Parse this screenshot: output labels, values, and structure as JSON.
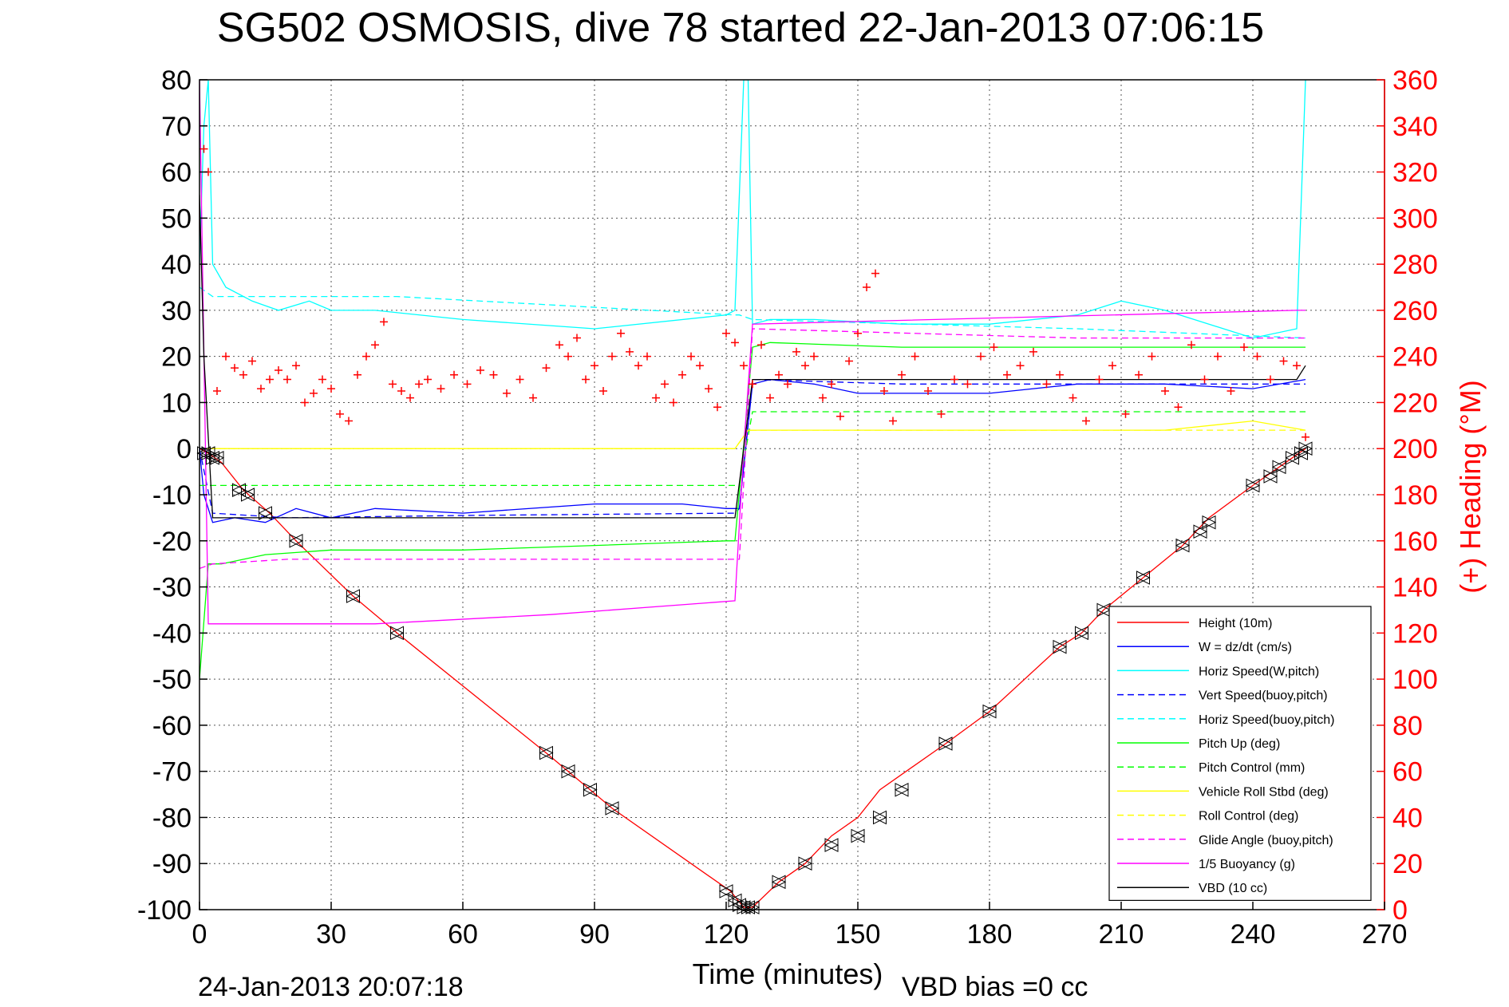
{
  "chart_data": {
    "type": "line",
    "title": "SG502 OSMOSIS, dive 78 started 22-Jan-2013 07:06:15",
    "xlabel": "Time (minutes)",
    "ylabel": "",
    "y2label": "(+) Heading (°M)",
    "xlim": [
      0,
      270
    ],
    "ylim": [
      -100,
      80
    ],
    "y2lim": [
      0,
      360
    ],
    "xticks": [
      "0",
      "30",
      "60",
      "90",
      "120",
      "150",
      "180",
      "210",
      "240",
      "270"
    ],
    "yticks": [
      "80",
      "70",
      "60",
      "50",
      "40",
      "30",
      "20",
      "10",
      "0",
      "-10",
      "-20",
      "-30",
      "-40",
      "-50",
      "-60",
      "-70",
      "-80",
      "-90",
      "-100"
    ],
    "y2ticks": [
      "360",
      "340",
      "320",
      "300",
      "280",
      "260",
      "240",
      "220",
      "200",
      "180",
      "160",
      "140",
      "120",
      "100",
      "80",
      "60",
      "40",
      "20",
      "0"
    ],
    "grid": true,
    "legend_position": "bottom-right",
    "footer_date": "24-Jan-2013 20:07:18",
    "footer_note": "VBD bias =0 cc",
    "series": [
      {
        "name": "Height (10m)",
        "color": "#ff0000",
        "style": "solid",
        "x": [
          0,
          2,
          5,
          10,
          16,
          22,
          35,
          45,
          79,
          84,
          89,
          94,
          121,
          124,
          126,
          132,
          138,
          144,
          150,
          155,
          170,
          180,
          196,
          201,
          206,
          215,
          224,
          230,
          240,
          246,
          252
        ],
        "y": [
          0,
          -1,
          -3,
          -9,
          -14,
          -20,
          -32,
          -40,
          -66,
          -70,
          -74,
          -78,
          -96,
          -99.5,
          -99.5,
          -94,
          -90,
          -84,
          -80,
          -74,
          -64,
          -57,
          -43,
          -40,
          -35,
          -28,
          -21,
          -15,
          -8,
          -4,
          0
        ]
      },
      {
        "name": "W = dz/dt (cm/s)",
        "color": "#0000ff",
        "style": "solid",
        "x": [
          0,
          1,
          3,
          8,
          15,
          22,
          30,
          40,
          60,
          90,
          110,
          120,
          123,
          126,
          130,
          140,
          150,
          160,
          180,
          200,
          220,
          240,
          252
        ],
        "y": [
          0,
          -10,
          -16,
          -15,
          -16,
          -13,
          -15,
          -13,
          -14,
          -12,
          -12,
          -13,
          -13,
          14,
          15,
          14,
          12,
          12,
          12,
          14,
          14,
          13,
          15
        ]
      },
      {
        "name": "Horiz Speed(W,pitch)",
        "color": "#00ffff",
        "style": "solid",
        "x": [
          0,
          1,
          2,
          3,
          6,
          12,
          18,
          25,
          30,
          40,
          60,
          90,
          120,
          122,
          124,
          125,
          126,
          130,
          140,
          160,
          180,
          200,
          210,
          220,
          240,
          250,
          252
        ],
        "y": [
          40,
          70,
          80,
          40,
          35,
          32,
          30,
          32,
          30,
          30,
          28,
          26,
          29,
          30,
          80,
          80,
          27,
          28,
          28,
          27,
          27,
          29,
          32,
          30,
          24,
          26,
          80
        ]
      },
      {
        "name": "Vert Speed(buoy,pitch)",
        "color": "#0000ff",
        "style": "dashed",
        "x": [
          0,
          3,
          20,
          60,
          122,
          123,
          126,
          160,
          252
        ],
        "y": [
          0,
          -14,
          -15,
          -14.5,
          -14,
          -13,
          15,
          14,
          14
        ]
      },
      {
        "name": "Horiz Speed(buoy,pitch)",
        "color": "#00ffff",
        "style": "dashed",
        "x": [
          0,
          3,
          20,
          45,
          122,
          123,
          126,
          200,
          252
        ],
        "y": [
          35,
          33,
          33,
          33,
          29,
          29,
          28,
          26,
          24
        ]
      },
      {
        "name": "Pitch Up (deg)",
        "color": "#00ff00",
        "style": "solid",
        "x": [
          0,
          2,
          5,
          15,
          30,
          60,
          90,
          120,
          122,
          126,
          130,
          160,
          200,
          240,
          252
        ],
        "y": [
          -50,
          -25,
          -25,
          -23,
          -22,
          -22,
          -21,
          -20,
          -20,
          22,
          23,
          22,
          22,
          22,
          22
        ]
      },
      {
        "name": "Pitch Control (mm)",
        "color": "#00ff00",
        "style": "dashed",
        "x": [
          0,
          3,
          122,
          123,
          126,
          252
        ],
        "y": [
          -8,
          -8,
          -8,
          -8,
          8,
          8
        ]
      },
      {
        "name": "Vehicle Roll Stbd (deg)",
        "color": "#ffff00",
        "style": "solid",
        "x": [
          0,
          2,
          10,
          30,
          60,
          90,
          120,
          122,
          125,
          130,
          160,
          200,
          220,
          240,
          252
        ],
        "y": [
          0,
          0,
          0,
          0,
          0,
          0,
          0,
          0,
          4,
          4,
          4,
          4,
          4,
          6,
          4
        ]
      },
      {
        "name": "Roll Control (deg)",
        "color": "#ffff00",
        "style": "dashed",
        "x": [
          0,
          3,
          122,
          125,
          252
        ],
        "y": [
          0,
          0,
          0,
          4,
          4
        ]
      },
      {
        "name": "Glide Angle (buoy,pitch)",
        "color": "#ff00ff",
        "style": "dashed",
        "x": [
          0,
          3,
          20,
          60,
          122,
          123,
          126,
          200,
          252
        ],
        "y": [
          -26,
          -25,
          -24,
          -24,
          -24,
          -24,
          26,
          24,
          24
        ]
      },
      {
        "name": "1/5 Buoyancy (g)",
        "color": "#ff00ff",
        "style": "solid",
        "x": [
          0,
          2,
          3,
          40,
          80,
          122,
          124,
          126,
          250,
          252
        ],
        "y": [
          80,
          -38,
          -38,
          -38,
          -36,
          -33,
          0,
          27,
          30,
          30
        ]
      },
      {
        "name": "VBD (10 cc)",
        "color": "#000000",
        "style": "solid",
        "x": [
          0,
          1,
          3,
          120,
          122,
          124,
          126,
          250,
          252
        ],
        "y": [
          55,
          20,
          -15,
          -15,
          -15,
          0,
          15,
          15,
          18
        ]
      }
    ],
    "heading_series": {
      "name": "(+) Heading",
      "color": "#ff0000",
      "marker": "+",
      "x": [
        1,
        2,
        4,
        6,
        8,
        10,
        12,
        14,
        16,
        18,
        20,
        22,
        24,
        26,
        28,
        30,
        32,
        34,
        36,
        38,
        40,
        42,
        44,
        46,
        48,
        50,
        52,
        55,
        58,
        61,
        64,
        67,
        70,
        73,
        76,
        79,
        82,
        84,
        86,
        88,
        90,
        92,
        94,
        96,
        98,
        100,
        102,
        104,
        106,
        108,
        110,
        112,
        114,
        116,
        118,
        120,
        122,
        124,
        126,
        128,
        130,
        132,
        134,
        136,
        138,
        140,
        142,
        144,
        146,
        148,
        150,
        152,
        154,
        156,
        158,
        160,
        163,
        166,
        169,
        172,
        175,
        178,
        181,
        184,
        187,
        190,
        193,
        196,
        199,
        202,
        205,
        208,
        211,
        214,
        217,
        220,
        223,
        226,
        229,
        232,
        235,
        238,
        241,
        244,
        247,
        250,
        252
      ],
      "y": [
        330,
        320,
        225,
        240,
        235,
        232,
        238,
        226,
        230,
        234,
        230,
        236,
        220,
        224,
        230,
        226,
        215,
        212,
        232,
        240,
        245,
        255,
        228,
        225,
        222,
        228,
        230,
        226,
        232,
        228,
        234,
        232,
        224,
        230,
        222,
        235,
        245,
        240,
        248,
        230,
        236,
        225,
        240,
        250,
        242,
        236,
        240,
        222,
        228,
        220,
        232,
        240,
        236,
        226,
        218,
        250,
        246,
        236,
        228,
        245,
        222,
        232,
        228,
        242,
        236,
        240,
        222,
        228,
        214,
        238,
        250,
        270,
        276,
        225,
        212,
        232,
        240,
        225,
        215,
        230,
        228,
        240,
        244,
        232,
        236,
        242,
        228,
        232,
        222,
        212,
        230,
        236,
        215,
        232,
        240,
        225,
        218,
        245,
        230,
        240,
        225,
        244,
        240,
        230,
        238,
        236,
        205
      ]
    },
    "dive_markers": {
      "marker": "triangles",
      "x": [
        1,
        2,
        3,
        4,
        9,
        11,
        15,
        22,
        35,
        45,
        79,
        84,
        89,
        94,
        120,
        122,
        123,
        124,
        125,
        126,
        132,
        138,
        144,
        150,
        155,
        160,
        170,
        180,
        196,
        201,
        206,
        215,
        224,
        228,
        230,
        240,
        244,
        246,
        249,
        251,
        252
      ],
      "y": [
        -1,
        -1,
        -2,
        -2,
        -9,
        -10,
        -14,
        -20,
        -32,
        -40,
        -66,
        -70,
        -74,
        -78,
        -96,
        -98,
        -99,
        -99.5,
        -99.5,
        -99.5,
        -94,
        -90,
        -86,
        -84,
        -80,
        -74,
        -64,
        -57,
        -43,
        -40,
        -35,
        -28,
        -21,
        -18,
        -16,
        -8,
        -6,
        -4,
        -2,
        -1,
        0
      ]
    }
  }
}
